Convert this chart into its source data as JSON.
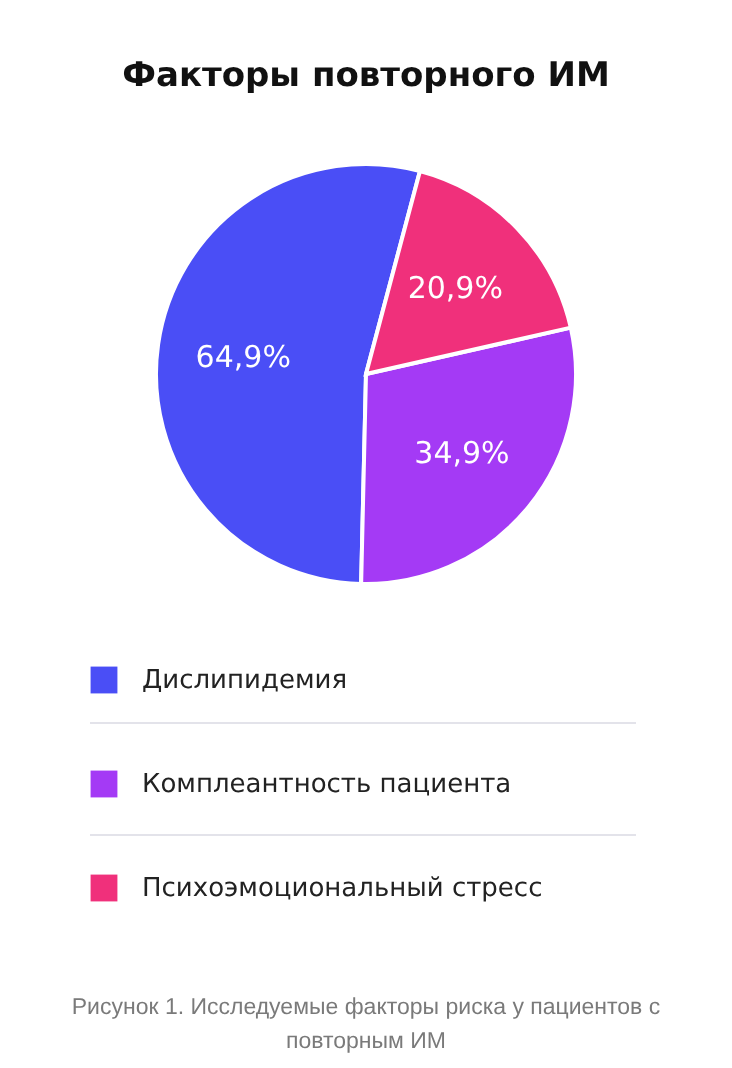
{
  "chart_data": {
    "type": "pie",
    "title": "Факторы повторного ИМ",
    "categories": [
      "Дислипидемия",
      "Комплеантность пациента",
      "Психоэмоциональный стресс"
    ],
    "values": [
      64.9,
      34.9,
      20.9
    ],
    "value_labels": [
      "64,9%",
      "34,9%",
      "20,9%"
    ],
    "colors": [
      "#4a4ef6",
      "#a43af5",
      "#f0307b"
    ],
    "legend": "bottom",
    "annotations": [
      "Рисунок 1. Исследуемые факторы риска у пациентов с повторным ИМ"
    ]
  }
}
